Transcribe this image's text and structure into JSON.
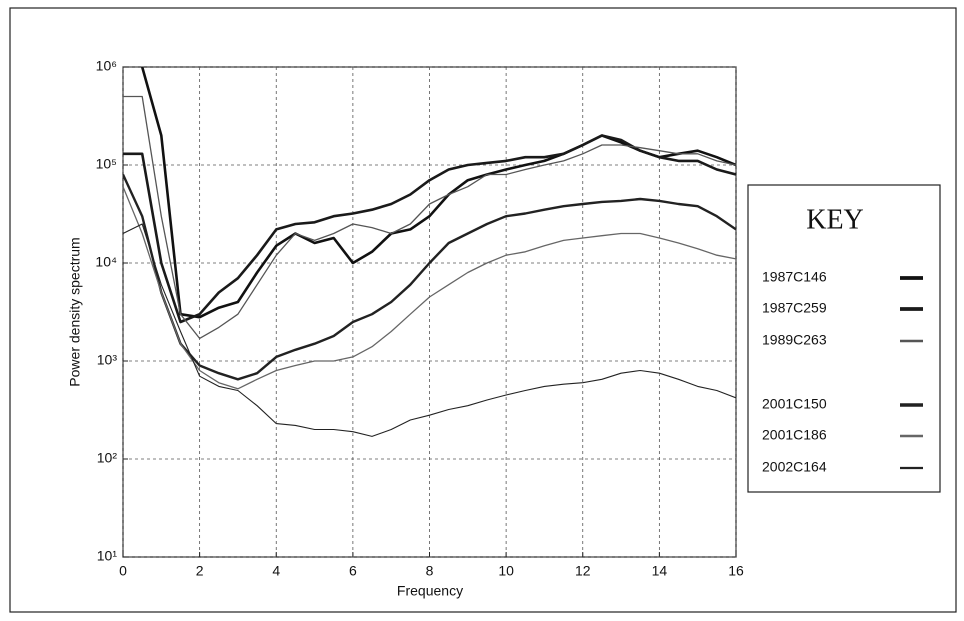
{
  "chart_data": {
    "type": "line",
    "xlabel": "Frequency",
    "ylabel": "Power density spectrum",
    "legend_title": "KEY",
    "x": [
      0,
      0.5,
      1,
      1.5,
      2,
      2.5,
      3,
      3.5,
      4,
      4.5,
      5,
      5.5,
      6,
      6.5,
      7,
      7.5,
      8,
      8.5,
      9,
      9.5,
      10,
      10.5,
      11,
      11.5,
      12,
      12.5,
      13,
      13.5,
      14,
      14.5,
      15,
      15.5,
      16
    ],
    "xlim": [
      0,
      16
    ],
    "xticks": [
      0,
      2,
      4,
      6,
      8,
      10,
      12,
      14,
      16
    ],
    "ylim": [
      10,
      1000000
    ],
    "log_y": true,
    "grid": true,
    "legend": "right",
    "yticks": [
      {
        "value": 10,
        "label": "10¹"
      },
      {
        "value": 100,
        "label": "10²"
      },
      {
        "value": 1000,
        "label": "10³"
      },
      {
        "value": 10000,
        "label": "10⁴"
      },
      {
        "value": 100000,
        "label": "10⁵"
      },
      {
        "value": 1000000,
        "label": "10⁶"
      }
    ],
    "series": [
      {
        "name": "1987C146",
        "color": "#111111",
        "width": 2.6,
        "values": [
          null,
          1000000,
          200000,
          3000,
          2800,
          3500,
          4000,
          8000,
          15000,
          20000,
          16000,
          18000,
          10000,
          13000,
          20000,
          22000,
          30000,
          50000,
          70000,
          80000,
          90000,
          100000,
          110000,
          130000,
          160000,
          200000,
          170000,
          140000,
          120000,
          130000,
          140000,
          120000,
          100000
        ]
      },
      {
        "name": "1987C259",
        "color": "#1a1a1a",
        "width": 2.6,
        "values": [
          130000,
          130000,
          10000,
          2500,
          3000,
          5000,
          7000,
          12000,
          22000,
          25000,
          26000,
          30000,
          32000,
          35000,
          40000,
          50000,
          70000,
          90000,
          100000,
          105000,
          110000,
          120000,
          120000,
          130000,
          160000,
          200000,
          180000,
          140000,
          120000,
          110000,
          110000,
          90000,
          80000
        ]
      },
      {
        "name": "1989C263",
        "color": "#555555",
        "width": 1.3,
        "values": [
          500000,
          500000,
          30000,
          3000,
          1700,
          2200,
          3000,
          6000,
          12000,
          20000,
          17000,
          20000,
          25000,
          23000,
          20000,
          25000,
          40000,
          50000,
          60000,
          80000,
          80000,
          90000,
          100000,
          110000,
          130000,
          160000,
          160000,
          150000,
          140000,
          130000,
          130000,
          110000,
          100000
        ]
      },
      {
        "name": "2001C150",
        "color": "#222222",
        "width": 2.4,
        "values": [
          80000,
          30000,
          5000,
          1500,
          900,
          750,
          650,
          750,
          1100,
          1300,
          1500,
          1800,
          2500,
          3000,
          4000,
          6000,
          10000,
          16000,
          20000,
          25000,
          30000,
          32000,
          35000,
          38000,
          40000,
          42000,
          43000,
          45000,
          43000,
          40000,
          38000,
          30000,
          22000
        ]
      },
      {
        "name": "2001C186",
        "color": "#666666",
        "width": 1.3,
        "values": [
          60000,
          20000,
          5000,
          1500,
          800,
          600,
          520,
          650,
          800,
          900,
          1000,
          1000,
          1100,
          1400,
          2000,
          3000,
          4500,
          6000,
          8000,
          10000,
          12000,
          13000,
          15000,
          17000,
          18000,
          19000,
          20000,
          20000,
          18000,
          16000,
          14000,
          12000,
          11000
        ]
      },
      {
        "name": "2002C164",
        "color": "#222222",
        "width": 1.1,
        "values": [
          20000,
          25000,
          6000,
          2000,
          700,
          550,
          500,
          350,
          230,
          220,
          200,
          200,
          190,
          170,
          200,
          250,
          280,
          320,
          350,
          400,
          450,
          500,
          550,
          580,
          600,
          650,
          750,
          800,
          750,
          650,
          550,
          500,
          420
        ]
      }
    ]
  }
}
